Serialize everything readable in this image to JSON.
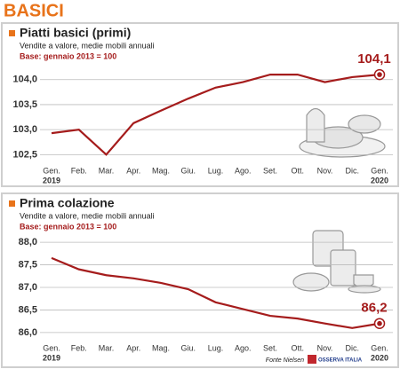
{
  "title": "BASICI",
  "source": "Fonte Nielsen",
  "logo": "OSSERVA ITALIA",
  "chart_data": [
    {
      "type": "line",
      "title": "Piatti basici (primi)",
      "subtitle": "Vendite a valore, medie mobili annuali",
      "base_note": "Base: gennaio 2013 = 100",
      "categories": [
        "Gen.",
        "Feb.",
        "Mar.",
        "Apr.",
        "Mag.",
        "Giu.",
        "Lug.",
        "Ago.",
        "Set.",
        "Ott.",
        "Nov.",
        "Dic.",
        "Gen."
      ],
      "start_year": "2019",
      "end_year": "2020",
      "values": [
        102.93,
        103.0,
        102.5,
        103.13,
        103.38,
        103.62,
        103.84,
        103.95,
        104.1,
        104.1,
        103.95,
        104.05,
        104.1
      ],
      "value_labels": [
        null,
        null,
        null,
        null,
        null,
        null,
        null,
        null,
        null,
        null,
        null,
        null,
        "104,1"
      ],
      "color": "#a51c1c",
      "ylim": [
        102.4,
        104.35
      ],
      "yticks": [
        {
          "value": 102.5,
          "label": "102,5"
        },
        {
          "value": 103.0,
          "label": "103,0"
        },
        {
          "value": 103.5,
          "label": "103,5"
        },
        {
          "value": 104.0,
          "label": "104,0"
        }
      ],
      "grid": true
    },
    {
      "type": "line",
      "title": "Prima colazione",
      "subtitle": "Vendite a valore, medie mobili annuali",
      "base_note": "Base: gennaio 2013 = 100",
      "categories": [
        "Gen.",
        "Feb.",
        "Mar.",
        "Apr.",
        "Mag.",
        "Giu.",
        "Lug.",
        "Ago.",
        "Set.",
        "Ott.",
        "Nov.",
        "Dic.",
        "Gen."
      ],
      "start_year": "2019",
      "end_year": "2020",
      "values": [
        87.65,
        87.4,
        87.27,
        87.2,
        87.1,
        86.96,
        86.67,
        86.52,
        86.37,
        86.31,
        86.2,
        86.1,
        86.2
      ],
      "value_labels": [
        null,
        null,
        null,
        null,
        null,
        null,
        null,
        null,
        null,
        null,
        null,
        null,
        "86,2"
      ],
      "color": "#a51c1c",
      "ylim": [
        85.9,
        88.1
      ],
      "yticks": [
        {
          "value": 86.0,
          "label": "86,0"
        },
        {
          "value": 86.5,
          "label": "86,5"
        },
        {
          "value": 87.0,
          "label": "87,0"
        },
        {
          "value": 87.5,
          "label": "87,5"
        },
        {
          "value": 88.0,
          "label": "88,0"
        }
      ],
      "grid": true
    }
  ]
}
